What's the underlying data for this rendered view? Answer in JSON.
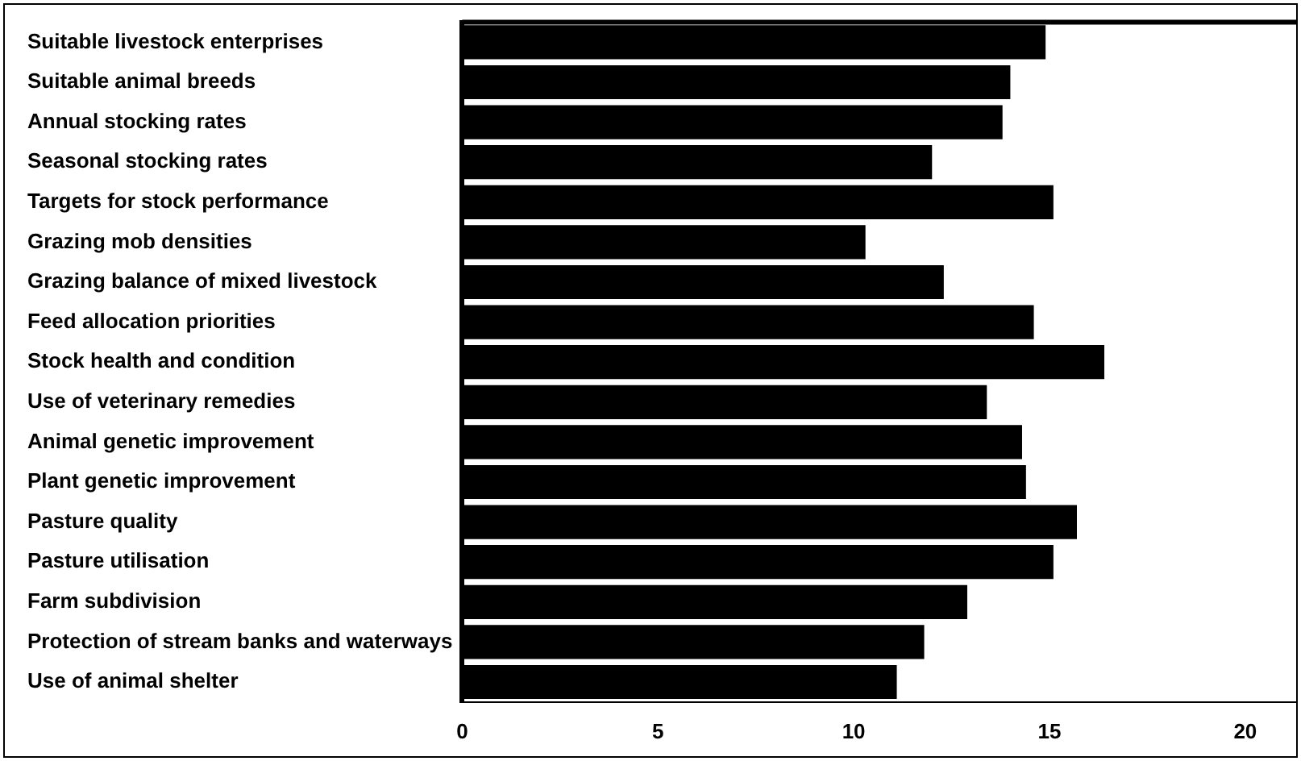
{
  "chart_data": {
    "type": "bar",
    "orientation": "horizontal",
    "categories": [
      "Suitable livestock enterprises",
      "Suitable animal breeds",
      "Annual stocking rates",
      "Seasonal stocking rates",
      "Targets for stock performance",
      "Grazing mob densities",
      "Grazing balance of mixed livestock",
      "Feed allocation priorities",
      "Stock health and condition",
      "Use of veterinary remedies",
      "Animal genetic improvement",
      "Plant genetic improvement",
      "Pasture quality",
      "Pasture utilisation",
      "Farm subdivision",
      "Protection of stream banks and waterways",
      "Use of animal shelter"
    ],
    "values": [
      14.9,
      14.0,
      13.8,
      12.0,
      15.1,
      10.3,
      12.3,
      14.6,
      16.4,
      13.4,
      14.3,
      14.4,
      15.7,
      15.1,
      12.9,
      11.8,
      11.1
    ],
    "color": "#000000",
    "xlim": [
      0,
      21.3
    ],
    "xticks": [
      0,
      5,
      10,
      15,
      20
    ],
    "grid": false,
    "legend": false
  }
}
